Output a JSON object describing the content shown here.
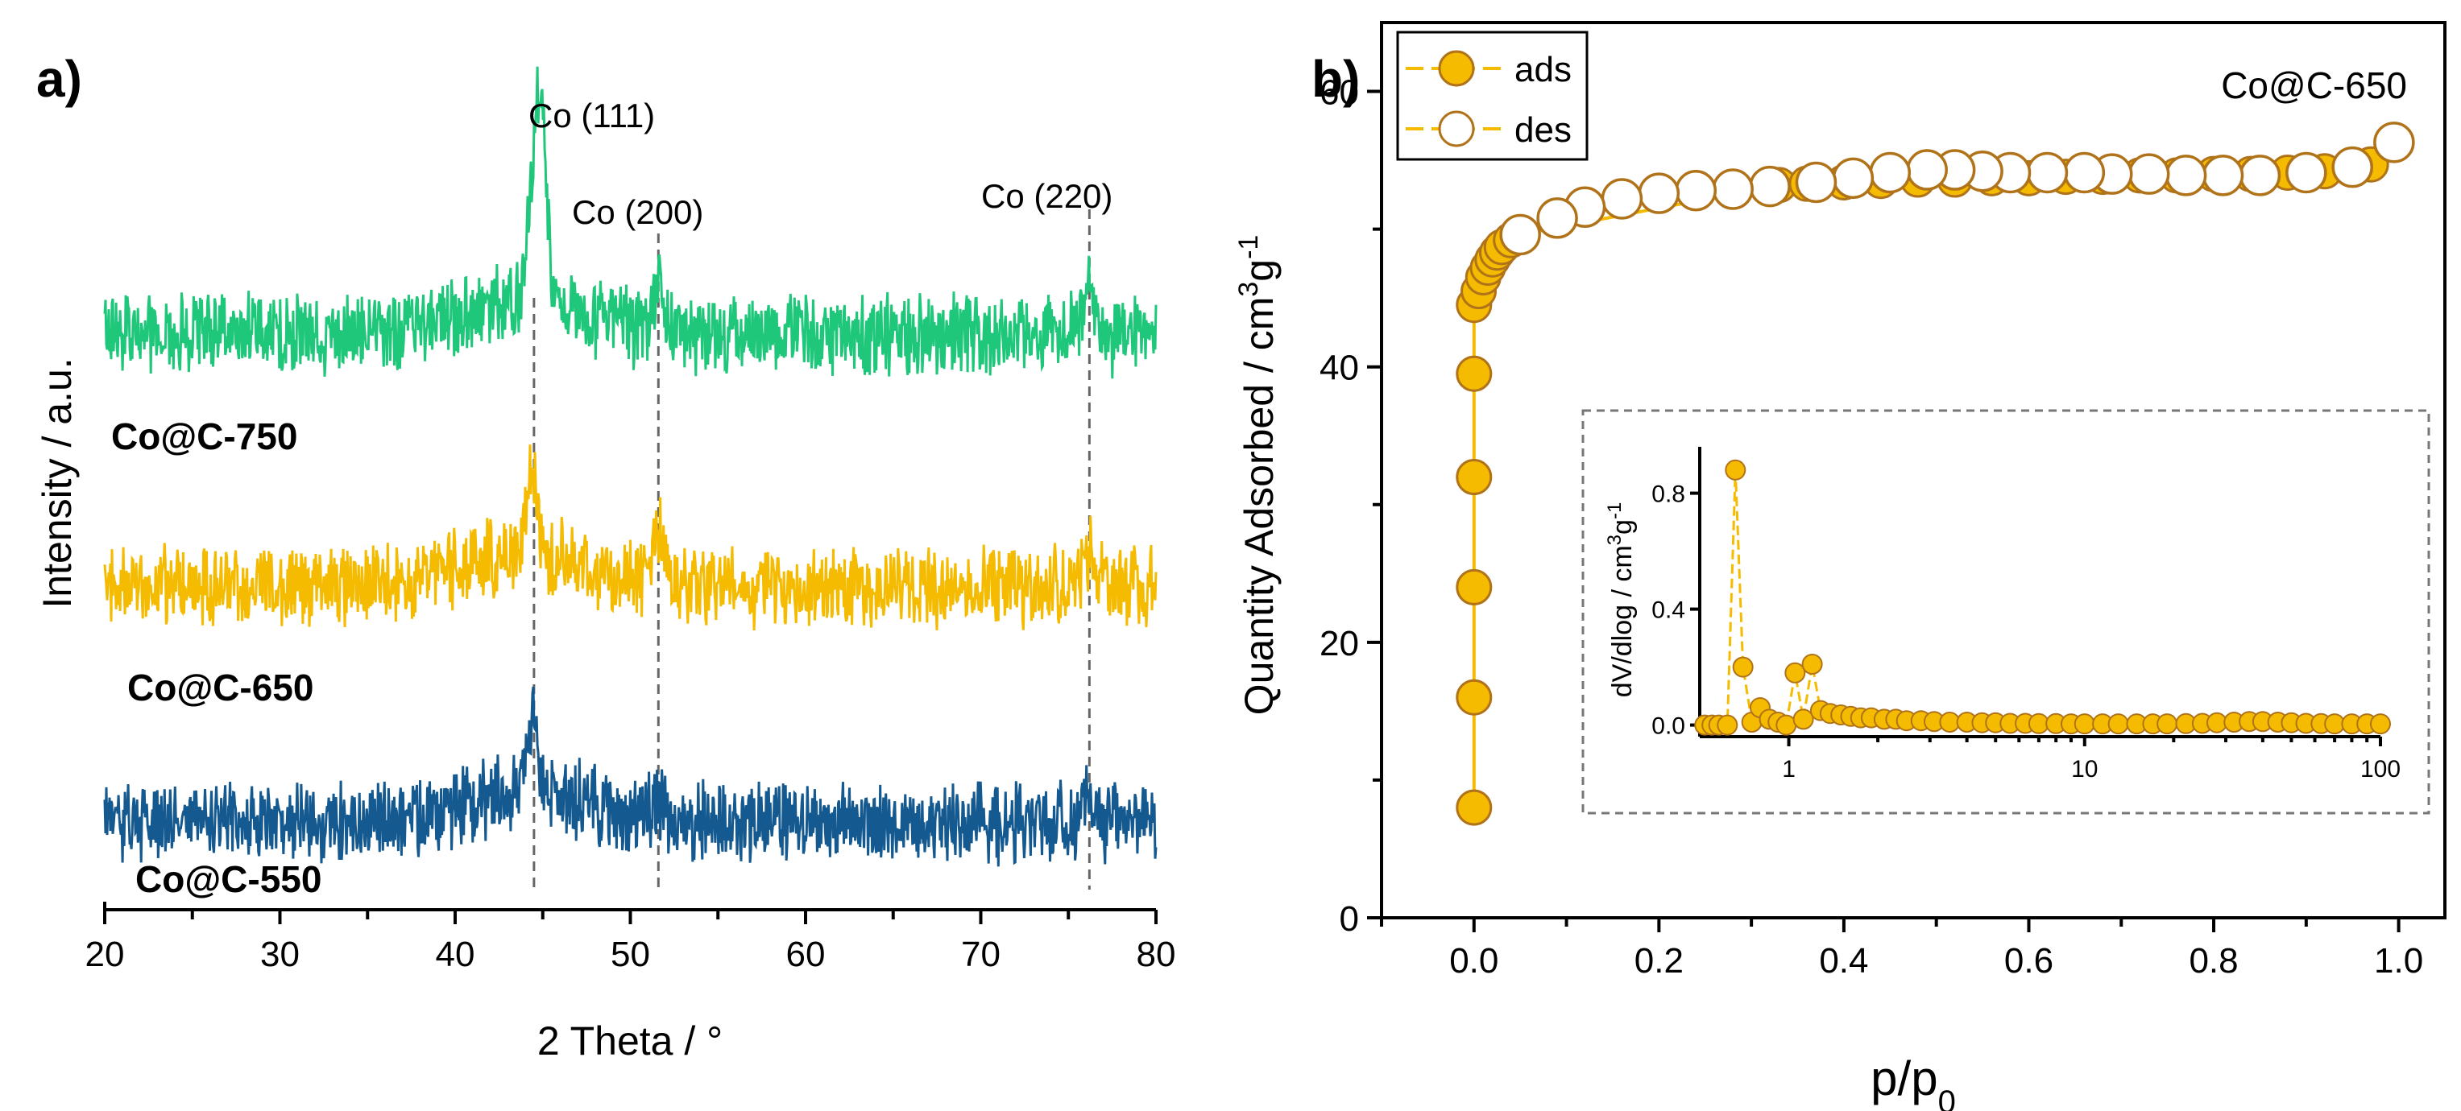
{
  "chart_data": [
    {
      "panel": "a)",
      "type": "line",
      "xlabel": "2 Theta / °",
      "ylabel": "Intensity / a.u.",
      "xlim": [
        20,
        80
      ],
      "xticks": [
        "20",
        "30",
        "40",
        "50",
        "60",
        "70",
        "80"
      ],
      "series": [
        {
          "name": "Co@C-750",
          "color": "#1fc77a",
          "baseline": 0.72,
          "peaks": [
            [
              44.3,
              0.1
            ],
            [
              44.9,
              0.26
            ],
            [
              51.6,
              0.06
            ],
            [
              76.2,
              0.06
            ]
          ]
        },
        {
          "name": "Co@C-650",
          "color": "#f5bb00",
          "baseline": 0.4,
          "peaks": [
            [
              44.4,
              0.1
            ],
            [
              51.6,
              0.07
            ],
            [
              76.2,
              0.04
            ]
          ]
        },
        {
          "name": "Co@C-550",
          "color": "#14598f",
          "baseline": 0.1,
          "peaks": [
            [
              44.4,
              0.09
            ],
            [
              51.6,
              0.03
            ],
            [
              76.2,
              0.03
            ]
          ]
        }
      ],
      "annotations": [
        {
          "text": "Co (111)",
          "x": 44.5
        },
        {
          "text": "Co (200)",
          "x": 51.6
        },
        {
          "text": "Co (220)",
          "x": 76.2
        }
      ]
    },
    {
      "panel": "b)",
      "type": "scatter",
      "title": "Co@C-650",
      "xlabel": "p/p0",
      "ylabel": "Quantity Adsorbed / cm3g-1",
      "xlim": [
        -0.1,
        1.05
      ],
      "ylim": [
        0,
        65
      ],
      "xticks": [
        "0.0",
        "0.2",
        "0.4",
        "0.6",
        "0.8",
        "1.0"
      ],
      "yticks": [
        "0",
        "20",
        "40",
        "60"
      ],
      "legend": [
        "ads",
        "des"
      ],
      "series": [
        {
          "name": "ads",
          "marker": "filled-circle",
          "color": "#f5bb00",
          "x": [
            0.0,
            0.0,
            0.0,
            0.0,
            0.0,
            0.0,
            0.005,
            0.01,
            0.015,
            0.02,
            0.025,
            0.03,
            0.04,
            0.05,
            0.33,
            0.36,
            0.4,
            0.44,
            0.48,
            0.52,
            0.56,
            0.6,
            0.64,
            0.68,
            0.72,
            0.76,
            0.8,
            0.84,
            0.88,
            0.92,
            0.95,
            0.97
          ],
          "y": [
            8,
            16,
            24,
            32,
            39.5,
            44.5,
            45.5,
            46.5,
            47.2,
            47.8,
            48.3,
            48.7,
            49.2,
            49.6,
            53.2,
            53.3,
            53.4,
            53.5,
            53.6,
            53.6,
            53.7,
            53.7,
            53.8,
            53.8,
            53.9,
            53.9,
            54.0,
            54.0,
            54.1,
            54.2,
            54.4,
            54.7
          ]
        },
        {
          "name": "des",
          "marker": "open-circle",
          "color": "#b0731a",
          "x": [
            0.995,
            0.95,
            0.9,
            0.85,
            0.81,
            0.77,
            0.73,
            0.69,
            0.66,
            0.62,
            0.58,
            0.55,
            0.52,
            0.49,
            0.45,
            0.41,
            0.37,
            0.32,
            0.28,
            0.24,
            0.2,
            0.16,
            0.12,
            0.09,
            0.05
          ],
          "y": [
            56.3,
            54.5,
            54.1,
            53.9,
            53.9,
            53.9,
            54.0,
            54.0,
            54.1,
            54.1,
            54.1,
            54.2,
            54.3,
            54.3,
            54.1,
            53.7,
            53.4,
            53.1,
            52.9,
            52.8,
            52.6,
            52.2,
            51.6,
            50.8,
            49.6
          ]
        }
      ],
      "inset": {
        "type": "line",
        "xscale": "log",
        "ylabel": "dV/dlog / cm3g-1",
        "xlim": [
          0.5,
          100
        ],
        "ylim": [
          -0.04,
          0.96
        ],
        "xticks": [
          "1",
          "10",
          "100"
        ],
        "yticks": [
          "0.0",
          "0.4",
          "0.8"
        ],
        "x": [
          0.52,
          0.55,
          0.58,
          0.62,
          0.66,
          0.7,
          0.75,
          0.8,
          0.86,
          0.92,
          0.98,
          1.05,
          1.12,
          1.2,
          1.28,
          1.38,
          1.5,
          1.62,
          1.75,
          1.9,
          2.1,
          2.3,
          2.5,
          2.8,
          3.1,
          3.5,
          4,
          4.5,
          5,
          5.6,
          6.3,
          7,
          8,
          9,
          10,
          11.5,
          13,
          15,
          17,
          19,
          22,
          25,
          28,
          32,
          36,
          40,
          45,
          50,
          56,
          63,
          70,
          80,
          90,
          100
        ],
        "y": [
          0.0,
          0.0,
          0.0,
          0.0,
          0.88,
          0.2,
          0.01,
          0.06,
          0.02,
          0.01,
          0.0,
          0.18,
          0.02,
          0.21,
          0.05,
          0.04,
          0.035,
          0.03,
          0.025,
          0.025,
          0.02,
          0.02,
          0.015,
          0.015,
          0.012,
          0.01,
          0.01,
          0.008,
          0.008,
          0.006,
          0.006,
          0.005,
          0.005,
          0.004,
          0.004,
          0.004,
          0.004,
          0.004,
          0.004,
          0.004,
          0.005,
          0.006,
          0.008,
          0.01,
          0.012,
          0.012,
          0.01,
          0.008,
          0.006,
          0.005,
          0.004,
          0.004,
          0.004,
          0.004
        ]
      }
    }
  ]
}
